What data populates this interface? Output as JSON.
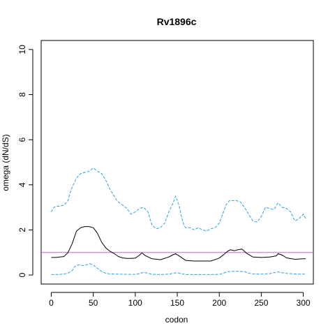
{
  "chart_data": {
    "type": "line",
    "title": "Rv1896c",
    "xlabel": "codon",
    "ylabel": "omega (dN/dS)",
    "xlim": [
      -12,
      312
    ],
    "ylim": [
      -0.4,
      10.4
    ],
    "x_ticks": [
      0,
      50,
      100,
      150,
      200,
      250,
      300
    ],
    "y_ticks": [
      0,
      2,
      4,
      6,
      8,
      10
    ],
    "grid": false,
    "colors": {
      "mean": "#000000",
      "bounds": "#29a3e0",
      "reference": "#cc66cc"
    },
    "reference_line": {
      "y": 1
    },
    "series": [
      {
        "style": "solid",
        "x": [
          0,
          5,
          10,
          15,
          20,
          25,
          30,
          35,
          40,
          45,
          50,
          55,
          60,
          65,
          70,
          75,
          80,
          85,
          90,
          95,
          100,
          105,
          108,
          112,
          120,
          130,
          140,
          145,
          148,
          152,
          160,
          170,
          180,
          190,
          200,
          205,
          210,
          213,
          218,
          222,
          227,
          232,
          240,
          250,
          260,
          268,
          270,
          275,
          280,
          290,
          300,
          303
        ],
        "values": [
          0.78,
          0.78,
          0.8,
          0.82,
          1.0,
          1.4,
          1.95,
          2.1,
          2.15,
          2.15,
          2.1,
          1.85,
          1.45,
          1.2,
          1.05,
          0.95,
          0.82,
          0.76,
          0.74,
          0.74,
          0.75,
          0.88,
          0.98,
          0.86,
          0.72,
          0.68,
          0.8,
          0.9,
          0.95,
          0.85,
          0.65,
          0.62,
          0.62,
          0.62,
          0.75,
          0.9,
          1.05,
          1.12,
          1.08,
          1.12,
          1.15,
          0.98,
          0.8,
          0.78,
          0.8,
          0.85,
          0.95,
          0.88,
          0.76,
          0.7,
          0.72,
          0.72
        ]
      },
      {
        "style": "dashed",
        "x": [
          0,
          3,
          6,
          10,
          15,
          20,
          22,
          25,
          30,
          35,
          40,
          45,
          50,
          55,
          60,
          65,
          70,
          75,
          78,
          85,
          90,
          95,
          100,
          105,
          110,
          115,
          120,
          125,
          130,
          135,
          140,
          145,
          148,
          152,
          155,
          158,
          160,
          165,
          170,
          175,
          180,
          185,
          190,
          195,
          200,
          205,
          208,
          212,
          215,
          220,
          225,
          230,
          235,
          240,
          245,
          250,
          255,
          260,
          265,
          270,
          275,
          280,
          285,
          290,
          295,
          300,
          303
        ],
        "values": [
          2.8,
          3.0,
          3.05,
          3.05,
          3.1,
          3.3,
          3.6,
          3.9,
          4.3,
          4.5,
          4.55,
          4.6,
          4.75,
          4.6,
          4.5,
          4.2,
          3.8,
          3.5,
          3.3,
          3.1,
          2.95,
          2.7,
          2.8,
          2.95,
          3.0,
          2.8,
          2.2,
          2.05,
          2.1,
          2.3,
          2.8,
          3.2,
          3.5,
          3.1,
          2.6,
          2.2,
          2.1,
          2.1,
          2.0,
          2.1,
          2.0,
          1.95,
          2.05,
          2.1,
          2.3,
          2.8,
          3.1,
          3.3,
          3.3,
          3.3,
          3.25,
          3.0,
          2.7,
          2.4,
          2.35,
          2.6,
          3.0,
          2.95,
          2.9,
          3.2,
          3.0,
          2.95,
          2.8,
          2.4,
          2.5,
          2.7,
          2.5
        ]
      },
      {
        "style": "dashed",
        "x": [
          0,
          5,
          10,
          15,
          20,
          25,
          28,
          32,
          38,
          42,
          46,
          50,
          55,
          60,
          65,
          70,
          80,
          90,
          100,
          105,
          110,
          115,
          120,
          130,
          140,
          145,
          150,
          155,
          160,
          170,
          180,
          190,
          200,
          205,
          210,
          220,
          230,
          235,
          240,
          250,
          260,
          265,
          270,
          275,
          280,
          290,
          300,
          303
        ],
        "values": [
          0.02,
          0.02,
          0.03,
          0.05,
          0.08,
          0.2,
          0.38,
          0.45,
          0.42,
          0.45,
          0.5,
          0.45,
          0.3,
          0.15,
          0.08,
          0.05,
          0.04,
          0.03,
          0.03,
          0.06,
          0.12,
          0.08,
          0.03,
          0.02,
          0.04,
          0.08,
          0.1,
          0.06,
          0.02,
          0.02,
          0.02,
          0.02,
          0.03,
          0.08,
          0.15,
          0.17,
          0.15,
          0.08,
          0.05,
          0.04,
          0.06,
          0.1,
          0.14,
          0.1,
          0.07,
          0.05,
          0.04,
          0.04
        ]
      }
    ]
  }
}
